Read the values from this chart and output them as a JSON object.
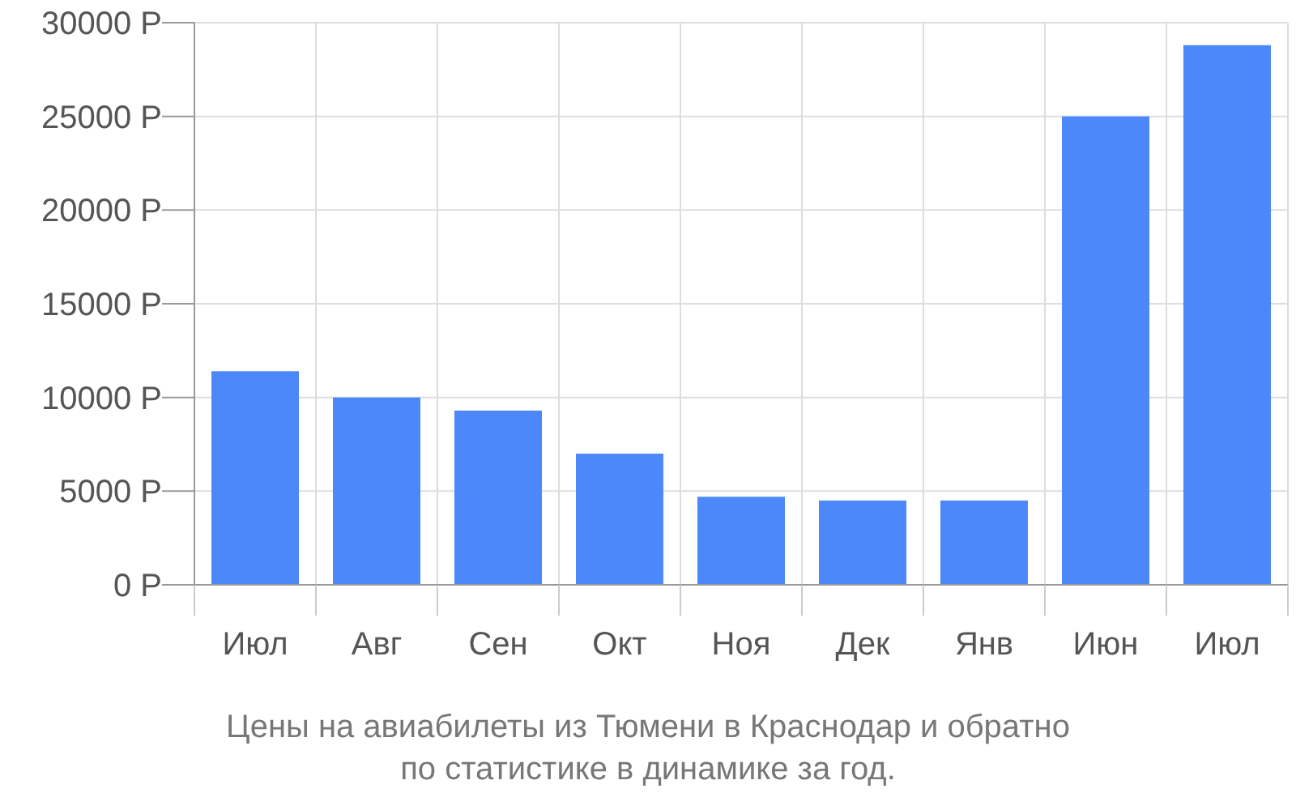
{
  "chart_data": {
    "type": "bar",
    "title": "Цены на авиабилеты из Тюмени в Краснодар и обратно по статистике в динамике за год.",
    "categories": [
      "Июл",
      "Авг",
      "Сен",
      "Окт",
      "Ноя",
      "Дек",
      "Янв",
      "Июн",
      "Июл"
    ],
    "values": [
      11400,
      10000,
      9300,
      7000,
      4700,
      4500,
      4500,
      25000,
      28800
    ],
    "color": "#4d88fb",
    "ylim": [
      0,
      30000
    ],
    "yticks": [
      {
        "value": 0,
        "label": "0 Р"
      },
      {
        "value": 5000,
        "label": "5000 Р"
      },
      {
        "value": 10000,
        "label": "10000 Р"
      },
      {
        "value": 15000,
        "label": "15000 Р"
      },
      {
        "value": 20000,
        "label": "20000 Р"
      },
      {
        "value": 25000,
        "label": "25000 Р"
      },
      {
        "value": 30000,
        "label": "30000 Р"
      }
    ],
    "grid": true
  }
}
